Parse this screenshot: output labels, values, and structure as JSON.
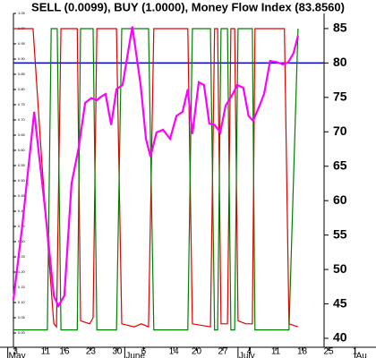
{
  "chart_data": {
    "type": "line",
    "title": "SELL (0.0099), BUY (1.0000), Money Flow Index (83.8560)",
    "series": [
      {
        "color": "#e00000",
        "axis": "y",
        "x": [
          2.5,
          7.7,
          10.1,
          13.2,
          13.9,
          15.1,
          19.4,
          20.3,
          22.7,
          23.6,
          24.6,
          29.8,
          31.2,
          34.5,
          36.4,
          38.3,
          39.7,
          48.7,
          49.9,
          54.7,
          55.8,
          56.6,
          57.5,
          59.2,
          60.1,
          61.1,
          62.0,
          64.1,
          65.8,
          66.5,
          74.3,
          75.5,
          77.9
        ],
        "values": [
          1.0,
          1.0,
          0.55,
          0.03,
          0.02,
          1.0,
          1.0,
          0.04,
          0.03,
          0.05,
          1.0,
          1.0,
          0.03,
          0.02,
          0.03,
          0.02,
          1.0,
          1.0,
          0.03,
          0.02,
          1.0,
          1.0,
          0.03,
          0.03,
          1.0,
          1.0,
          0.04,
          0.03,
          0.03,
          1.0,
          1.0,
          0.03,
          0.02
        ]
      },
      {
        "color": "#008000",
        "axis": "y",
        "x": [
          2.5,
          11.5,
          12.5,
          14.1,
          15.1,
          19.4,
          20.3,
          23.6,
          24.6,
          29.8,
          31.2,
          38.3,
          39.7,
          48.7,
          49.9,
          54.7,
          55.8,
          56.6,
          57.5,
          59.2,
          60.1,
          61.1,
          62.0,
          65.8,
          66.5,
          75.5,
          77.9
        ],
        "values": [
          0.01,
          0.01,
          1.0,
          1.0,
          0.01,
          0.01,
          1.0,
          1.0,
          0.01,
          0.01,
          1.0,
          1.0,
          0.01,
          0.01,
          1.0,
          1.0,
          0.01,
          0.01,
          1.0,
          1.0,
          0.01,
          0.01,
          1.0,
          1.0,
          0.01,
          0.01,
          1.0
        ]
      },
      {
        "color": "#ff00ff",
        "axis": "y2",
        "x": [
          2.5,
          4.9,
          8.0,
          10.8,
          13.2,
          14.4,
          16.0,
          17.9,
          19.8,
          21.5,
          23.1,
          24.6,
          25.7,
          26.9,
          28.4,
          29.8,
          31.4,
          34.0,
          36.2,
          37.6,
          38.8,
          40.4,
          42.1,
          44.0,
          45.7,
          47.3,
          48.7,
          49.9,
          51.6,
          53.0,
          54.4,
          55.8,
          57.3,
          58.7,
          60.6,
          61.8,
          63.4,
          64.8,
          66.0,
          67.7,
          68.9,
          70.5,
          72.4,
          73.9,
          75.3,
          76.7,
          77.9
        ],
        "values": [
          45.6,
          56.6,
          72.9,
          59.2,
          46.2,
          44.7,
          46.2,
          62.5,
          67.7,
          74.2,
          74.9,
          74.6,
          75.1,
          75.5,
          71.0,
          76.2,
          76.8,
          85.3,
          76.8,
          69.0,
          66.4,
          69.9,
          70.3,
          69.0,
          72.3,
          72.9,
          76.2,
          69.7,
          77.2,
          76.8,
          71.2,
          71.0,
          69.9,
          73.8,
          75.5,
          76.8,
          76.4,
          72.3,
          71.6,
          73.8,
          75.5,
          80.3,
          80.1,
          79.8,
          80.1,
          81.4,
          84.0
        ]
      }
    ],
    "hline": {
      "value": 80,
      "axis": "y2",
      "color": "#0000c0"
    },
    "xlim": [
      2.5,
      84.8
    ],
    "xticks": [
      {
        "value": 3,
        "label": "3"
      },
      {
        "value": 11,
        "label": "11"
      },
      {
        "value": 16,
        "label": "16"
      },
      {
        "value": 23,
        "label": "23"
      },
      {
        "value": 30,
        "label": "30"
      },
      {
        "value": 37,
        "label": "6"
      },
      {
        "value": 45,
        "label": "14"
      },
      {
        "value": 51,
        "label": "20"
      },
      {
        "value": 58,
        "label": "27"
      },
      {
        "value": 65,
        "label": "4"
      },
      {
        "value": 72,
        "label": "11"
      },
      {
        "value": 79,
        "label": "18"
      },
      {
        "value": 86,
        "label": "25"
      },
      {
        "value": 93,
        "label": "1"
      }
    ],
    "months": [
      {
        "value": 1,
        "label": "May"
      },
      {
        "value": 32,
        "label": "June"
      },
      {
        "value": 62,
        "label": "July"
      },
      {
        "value": 93,
        "label": "Au"
      }
    ],
    "ylim": [
      -0.047,
      1.05
    ],
    "yticks": [
      {
        "value": 0,
        "label": "0.00"
      },
      {
        "value": 0.05,
        "label": "0.05"
      },
      {
        "value": 0.1,
        "label": "0.10"
      },
      {
        "value": 0.15,
        "label": "0.15"
      },
      {
        "value": 0.2,
        "label": "0.20"
      },
      {
        "value": 0.25,
        "label": "0.25"
      },
      {
        "value": 0.3,
        "label": "0.30"
      },
      {
        "value": 0.35,
        "label": "0.35"
      },
      {
        "value": 0.4,
        "label": "0.40"
      },
      {
        "value": 0.45,
        "label": "0.45"
      },
      {
        "value": 0.5,
        "label": "0.50"
      },
      {
        "value": 0.55,
        "label": "0.55"
      },
      {
        "value": 0.6,
        "label": "0.60"
      },
      {
        "value": 0.65,
        "label": "0.65"
      },
      {
        "value": 0.7,
        "label": "0.70"
      },
      {
        "value": 0.75,
        "label": "0.75"
      },
      {
        "value": 0.8,
        "label": "0.80"
      },
      {
        "value": 0.85,
        "label": "0.85"
      },
      {
        "value": 0.9,
        "label": "0.90"
      },
      {
        "value": 0.95,
        "label": "0.95"
      },
      {
        "value": 1,
        "label": "1.00"
      },
      {
        "value": 1.05,
        "label": "1.05"
      }
    ],
    "y2lim": [
      38.7,
      87.2
    ],
    "y2ticks": [
      40,
      45,
      50,
      55,
      60,
      65,
      70,
      75,
      80,
      85
    ]
  }
}
